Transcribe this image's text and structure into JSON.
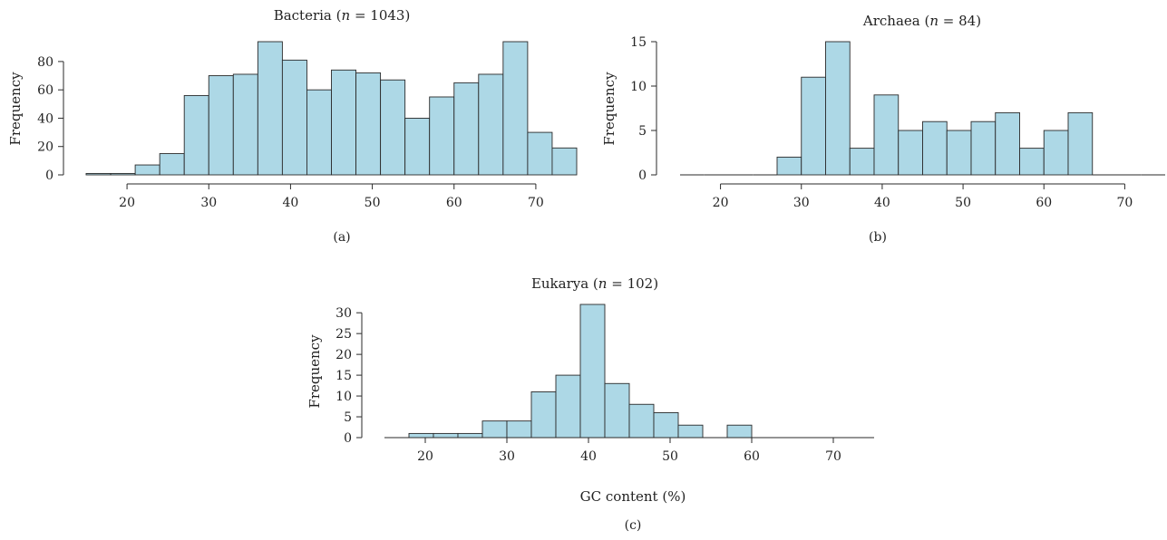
{
  "chart_data": [
    {
      "type": "bar",
      "panel": "(a)",
      "title_prefix": "Bacteria (",
      "title_n": "n",
      "title_suffix": " = 1043)",
      "ylabel": "Frequency",
      "xlabel": "",
      "bin_edges": [
        15,
        18,
        21,
        24,
        27,
        30,
        33,
        36,
        39,
        42,
        45,
        48,
        51,
        54,
        57,
        60,
        63,
        66,
        69,
        72,
        75
      ],
      "values": [
        1,
        1,
        7,
        15,
        56,
        70,
        71,
        94,
        81,
        60,
        74,
        72,
        67,
        40,
        55,
        65,
        71,
        94,
        30,
        19
      ],
      "xlim": [
        15,
        75
      ],
      "ylim": [
        0,
        94
      ],
      "xticks": [
        20,
        30,
        40,
        50,
        60,
        70
      ],
      "yticks": [
        0,
        20,
        40,
        60,
        80
      ],
      "color": "#add8e6"
    },
    {
      "type": "bar",
      "panel": "(b)",
      "title_prefix": "Archaea (",
      "title_n": "n",
      "title_suffix": " = 84)",
      "ylabel": "Frequency",
      "xlabel": "",
      "bin_edges": [
        15,
        18,
        21,
        24,
        27,
        30,
        33,
        36,
        39,
        42,
        45,
        48,
        51,
        54,
        57,
        60,
        63,
        66,
        69,
        72,
        75
      ],
      "values": [
        0,
        0,
        0,
        0,
        2,
        11,
        15,
        3,
        9,
        5,
        6,
        5,
        6,
        7,
        3,
        5,
        7,
        0,
        0,
        0
      ],
      "xlim": [
        15,
        75
      ],
      "ylim": [
        0,
        15
      ],
      "xticks": [
        20,
        30,
        40,
        50,
        60,
        70
      ],
      "yticks": [
        0,
        5,
        10,
        15
      ],
      "color": "#add8e6"
    },
    {
      "type": "bar",
      "panel": "(c)",
      "title_prefix": "Eukarya (",
      "title_n": "n",
      "title_suffix": " = 102)",
      "ylabel": "Frequency",
      "xlabel": "GC content (%)",
      "bin_edges": [
        15,
        18,
        21,
        24,
        27,
        30,
        33,
        36,
        39,
        42,
        45,
        48,
        51,
        54,
        57,
        60,
        63,
        66,
        69,
        72,
        75
      ],
      "values": [
        0,
        1,
        1,
        1,
        4,
        4,
        11,
        15,
        32,
        13,
        8,
        6,
        3,
        0,
        3,
        0,
        0,
        0,
        0,
        0
      ],
      "xlim": [
        15,
        75
      ],
      "ylim": [
        0,
        32
      ],
      "xticks": [
        20,
        30,
        40,
        50,
        60,
        70
      ],
      "yticks": [
        0,
        5,
        10,
        15,
        20,
        25,
        30
      ],
      "color": "#add8e6"
    }
  ]
}
